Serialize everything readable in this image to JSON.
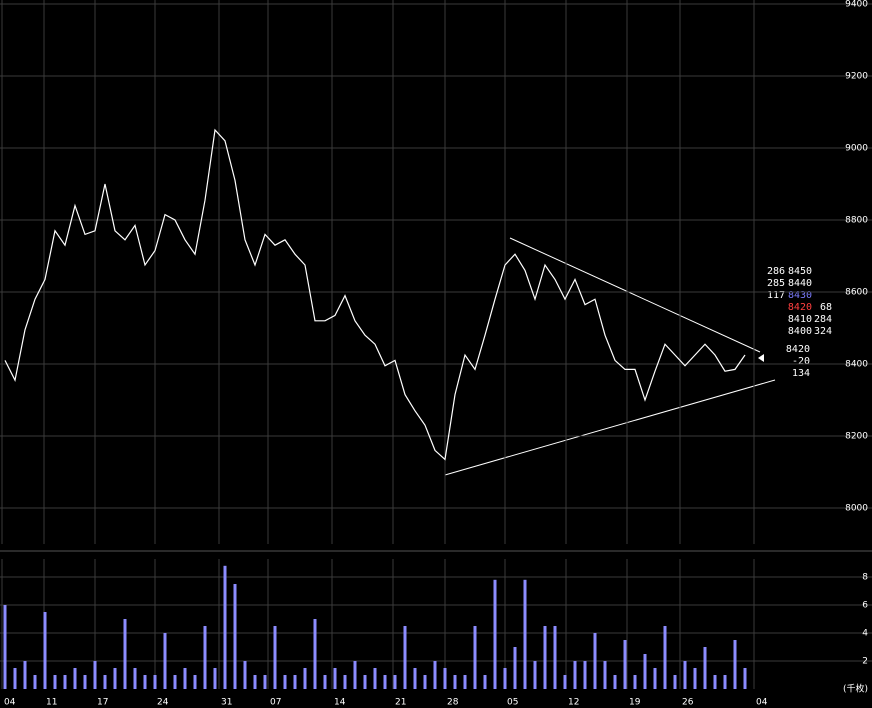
{
  "chart_data": [
    {
      "type": "line",
      "color": "#ffffff",
      "x": [
        0.5,
        1.5,
        2.5,
        3.5,
        4.5,
        5.5,
        6.5,
        7.5,
        8.5,
        9.5,
        10.5,
        11.5,
        12.5,
        13.5,
        14.5,
        15.5,
        16.5,
        17.5,
        18.5,
        19.5,
        20.5,
        21.5,
        22.5,
        23.5,
        24.5,
        25.5,
        26.5,
        27.5,
        28.5,
        29.5,
        30.5,
        31.5,
        32.5,
        33.5,
        34.5,
        35.5,
        36.5,
        37.5,
        38.5,
        39.5,
        40.5,
        41.5,
        42.5,
        43.5,
        44.5,
        45.5,
        46.5,
        47.5,
        48.5,
        49.5,
        50.5,
        51.5,
        52.5,
        53.5,
        54.5,
        55.5,
        56.5,
        57.5,
        58.5,
        59.5,
        60.5,
        61.5,
        62.5,
        63.5,
        64.5,
        65.5,
        66.5,
        67.5,
        68.5,
        69.5,
        70.5,
        71.5,
        72.5,
        73.5,
        74.5
      ],
      "values": [
        8410,
        8355,
        8495,
        8580,
        8635,
        8770,
        8730,
        8840,
        8760,
        8770,
        8900,
        8770,
        8745,
        8785,
        8675,
        8715,
        8815,
        8800,
        8745,
        8705,
        8855,
        9050,
        9020,
        8910,
        8745,
        8675,
        8760,
        8730,
        8745,
        8705,
        8675,
        8520,
        8520,
        8535,
        8590,
        8520,
        8480,
        8455,
        8395,
        8410,
        8315,
        8270,
        8230,
        8160,
        8135,
        8315,
        8425,
        8385,
        8480,
        8580,
        8675,
        8705,
        8660,
        8580,
        8675,
        8635,
        8580,
        8635,
        8565,
        8580,
        8480,
        8410,
        8385,
        8385,
        8300,
        8380,
        8455,
        8425,
        8395,
        8425,
        8455,
        8425,
        8380,
        8385,
        8425
      ],
      "xlim": [
        0,
        87.2
      ],
      "ylim": [
        7900,
        9400
      ],
      "yticks": [
        8000,
        8200,
        8400,
        8600,
        8800,
        9000,
        9200,
        9400
      ],
      "grid": true
    },
    {
      "type": "bar",
      "color": "#8c8cff",
      "x": [
        0.5,
        1.5,
        2.5,
        3.5,
        4.5,
        5.5,
        6.5,
        7.5,
        8.5,
        9.5,
        10.5,
        11.5,
        12.5,
        13.5,
        14.5,
        15.5,
        16.5,
        17.5,
        18.5,
        19.5,
        20.5,
        21.5,
        22.5,
        23.5,
        24.5,
        25.5,
        26.5,
        27.5,
        28.5,
        29.5,
        30.5,
        31.5,
        32.5,
        33.5,
        34.5,
        35.5,
        36.5,
        37.5,
        38.5,
        39.5,
        40.5,
        41.5,
        42.5,
        43.5,
        44.5,
        45.5,
        46.5,
        47.5,
        48.5,
        49.5,
        50.5,
        51.5,
        52.5,
        53.5,
        54.5,
        55.5,
        56.5,
        57.5,
        58.5,
        59.5,
        60.5,
        61.5,
        62.5,
        63.5,
        64.5,
        65.5,
        66.5,
        67.5,
        68.5,
        69.5,
        70.5,
        71.5,
        72.5,
        73.5,
        74.5
      ],
      "values": [
        6,
        1.5,
        2,
        1,
        5.5,
        1,
        1,
        1.5,
        1,
        2,
        1,
        1.5,
        5,
        1.5,
        1,
        1,
        4,
        1,
        1.5,
        1,
        4.5,
        1.5,
        8.8,
        7.5,
        2,
        1,
        1,
        4.5,
        1,
        1,
        1.5,
        5,
        1,
        1.5,
        1,
        2,
        1,
        1.5,
        1,
        1,
        4.5,
        1.5,
        1,
        2,
        1.5,
        1,
        1,
        4.5,
        1,
        7.8,
        1.5,
        3,
        7.8,
        2,
        4.5,
        4.5,
        1,
        2,
        2,
        4,
        2,
        1,
        3.5,
        1,
        2.5,
        1.5,
        4.5,
        1,
        2,
        1.5,
        3,
        1,
        1,
        3.5,
        1.5
      ],
      "xlim": [
        0,
        87.2
      ],
      "ylim": [
        0,
        9
      ],
      "yticks": [
        2,
        4,
        6,
        8
      ],
      "grid": true,
      "xticks": [
        {
          "value": 0.2,
          "label": "04"
        },
        {
          "value": 4.4,
          "label": "11"
        },
        {
          "value": 9.5,
          "label": "17"
        },
        {
          "value": 15.5,
          "label": "24"
        },
        {
          "value": 21.9,
          "label": "31"
        },
        {
          "value": 26.8,
          "label": "07"
        },
        {
          "value": 33.2,
          "label": "14"
        },
        {
          "value": 39.3,
          "label": "21"
        },
        {
          "value": 44.5,
          "label": "28"
        },
        {
          "value": 50.5,
          "label": "05"
        },
        {
          "value": 56.6,
          "label": "12"
        },
        {
          "value": 62.7,
          "label": "19"
        },
        {
          "value": 68,
          "label": "26"
        },
        {
          "value": 75.4,
          "label": "04"
        }
      ],
      "unit_label": "(千枚)"
    }
  ],
  "order_book": [
    [
      "286",
      "8450"
    ],
    [
      "285",
      "8440"
    ],
    [
      "117",
      "8430"
    ],
    [
      "8420",
      "68"
    ],
    [
      "8410",
      "284"
    ],
    [
      "8400",
      "324"
    ]
  ],
  "last_trade": [
    "8420",
    "-20",
    "134"
  ]
}
